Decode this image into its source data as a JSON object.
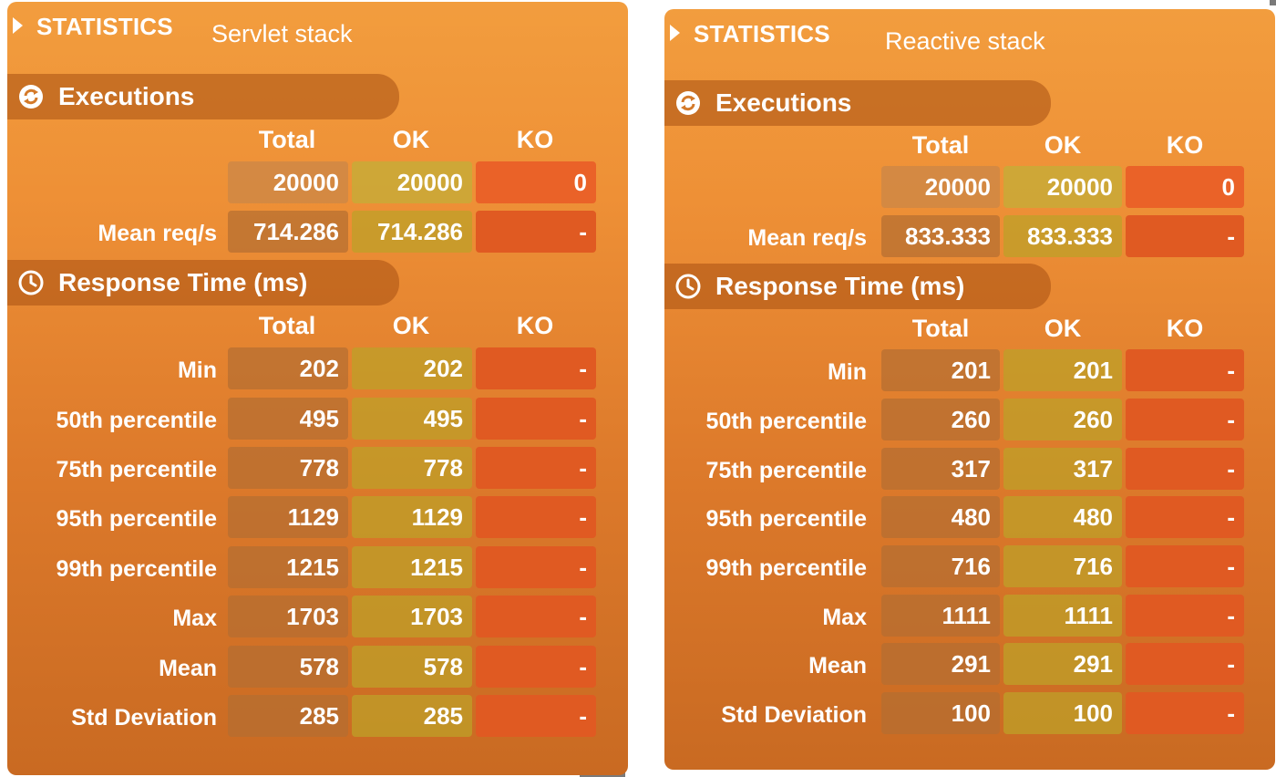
{
  "panels": [
    {
      "header_label": "STATISTICS",
      "stack_name": "Servlet stack",
      "executions": {
        "title": "Executions",
        "columns": [
          "Total",
          "OK",
          "KO"
        ],
        "rows": [
          {
            "label": "",
            "total": "20000",
            "ok": "20000",
            "ko": "0"
          },
          {
            "label": "Mean req/s",
            "total": "714.286",
            "ok": "714.286",
            "ko": "-"
          }
        ]
      },
      "response_time": {
        "title": "Response Time (ms)",
        "columns": [
          "Total",
          "OK",
          "KO"
        ],
        "rows": [
          {
            "label": "Min",
            "total": "202",
            "ok": "202",
            "ko": "-"
          },
          {
            "label": "50th percentile",
            "total": "495",
            "ok": "495",
            "ko": "-"
          },
          {
            "label": "75th percentile",
            "total": "778",
            "ok": "778",
            "ko": "-"
          },
          {
            "label": "95th percentile",
            "total": "1129",
            "ok": "1129",
            "ko": "-"
          },
          {
            "label": "99th percentile",
            "total": "1215",
            "ok": "1215",
            "ko": "-"
          },
          {
            "label": "Max",
            "total": "1703",
            "ok": "1703",
            "ko": "-"
          },
          {
            "label": "Mean",
            "total": "578",
            "ok": "578",
            "ko": "-"
          },
          {
            "label": "Std Deviation",
            "total": "285",
            "ok": "285",
            "ko": "-"
          }
        ]
      }
    },
    {
      "header_label": "STATISTICS",
      "stack_name": "Reactive stack",
      "executions": {
        "title": "Executions",
        "columns": [
          "Total",
          "OK",
          "KO"
        ],
        "rows": [
          {
            "label": "",
            "total": "20000",
            "ok": "20000",
            "ko": "0"
          },
          {
            "label": "Mean req/s",
            "total": "833.333",
            "ok": "833.333",
            "ko": "-"
          }
        ]
      },
      "response_time": {
        "title": "Response Time (ms)",
        "columns": [
          "Total",
          "OK",
          "KO"
        ],
        "rows": [
          {
            "label": "Min",
            "total": "201",
            "ok": "201",
            "ko": "-"
          },
          {
            "label": "50th percentile",
            "total": "260",
            "ok": "260",
            "ko": "-"
          },
          {
            "label": "75th percentile",
            "total": "317",
            "ok": "317",
            "ko": "-"
          },
          {
            "label": "95th percentile",
            "total": "480",
            "ok": "480",
            "ko": "-"
          },
          {
            "label": "99th percentile",
            "total": "716",
            "ok": "716",
            "ko": "-"
          },
          {
            "label": "Max",
            "total": "1111",
            "ok": "1111",
            "ko": "-"
          },
          {
            "label": "Mean",
            "total": "291",
            "ok": "291",
            "ko": "-"
          },
          {
            "label": "Std Deviation",
            "total": "100",
            "ok": "100",
            "ko": "-"
          }
        ]
      }
    }
  ],
  "icons": {
    "executions": "refresh-icon",
    "response_time": "clock-icon",
    "expand": "triangle-right-icon"
  },
  "colors": {
    "panel": "#ee9036",
    "ok_cell": "#bea028",
    "ko_cell": "#e05a22"
  }
}
